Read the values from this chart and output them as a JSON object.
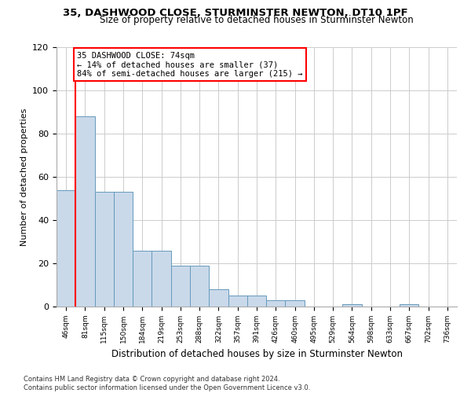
{
  "title1": "35, DASHWOOD CLOSE, STURMINSTER NEWTON, DT10 1PF",
  "title2": "Size of property relative to detached houses in Sturminster Newton",
  "xlabel": "Distribution of detached houses by size in Sturminster Newton",
  "ylabel": "Number of detached properties",
  "footnote": "Contains HM Land Registry data © Crown copyright and database right 2024.\nContains public sector information licensed under the Open Government Licence v3.0.",
  "bin_labels": [
    "46sqm",
    "81sqm",
    "115sqm",
    "150sqm",
    "184sqm",
    "219sqm",
    "253sqm",
    "288sqm",
    "322sqm",
    "357sqm",
    "391sqm",
    "426sqm",
    "460sqm",
    "495sqm",
    "529sqm",
    "564sqm",
    "598sqm",
    "633sqm",
    "667sqm",
    "702sqm",
    "736sqm"
  ],
  "bar_values": [
    54,
    88,
    53,
    53,
    26,
    26,
    19,
    19,
    8,
    5,
    5,
    3,
    3,
    0,
    0,
    1,
    0,
    0,
    1,
    0,
    0
  ],
  "bar_color": "#c9d9ea",
  "bar_edge_color": "#6699bb",
  "ylim": [
    0,
    120
  ],
  "yticks": [
    0,
    20,
    40,
    60,
    80,
    100,
    120
  ],
  "annotation_title": "35 DASHWOOD CLOSE: 74sqm",
  "annotation_line1": "← 14% of detached houses are smaller (37)",
  "annotation_line2": "84% of semi-detached houses are larger (215) →",
  "annotation_box_color": "white",
  "annotation_box_edge_color": "red",
  "property_line_color": "red",
  "background_color": "white",
  "grid_color": "#cccccc",
  "property_line_x": 0.5
}
